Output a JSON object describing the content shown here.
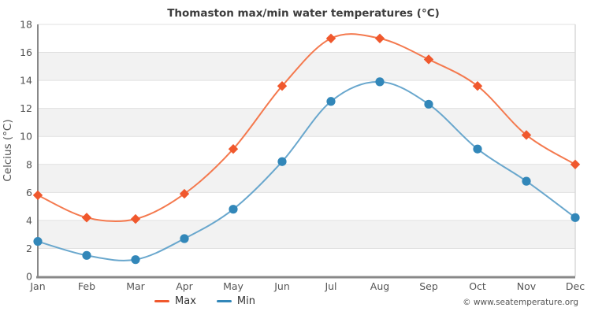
{
  "chart": {
    "copyright": "© www.seatemperature.org"
  },
  "chart_data": {
    "type": "line",
    "title": "Thomaston max/min water temperatures (°C)",
    "xlabel": "",
    "ylabel": "Celcius (°C)",
    "categories": [
      "Jan",
      "Feb",
      "Mar",
      "Apr",
      "May",
      "Jun",
      "Jul",
      "Aug",
      "Sep",
      "Oct",
      "Nov",
      "Dec"
    ],
    "series": [
      {
        "name": "Max",
        "marker": "diamond",
        "marker_color": "#f0582d",
        "line_color": "#f4794e",
        "values": [
          5.8,
          4.2,
          4.1,
          5.9,
          9.1,
          13.6,
          17.0,
          17.0,
          15.5,
          13.6,
          10.1,
          8.0
        ]
      },
      {
        "name": "Min",
        "marker": "circle",
        "marker_color": "#3287b9",
        "line_color": "#69a7cd",
        "values": [
          2.5,
          1.5,
          1.2,
          2.7,
          4.8,
          8.2,
          12.5,
          13.9,
          12.3,
          9.1,
          6.8,
          4.2
        ]
      }
    ],
    "ylim": [
      0,
      18
    ],
    "ytick_step": 2,
    "grid": "horizontal",
    "band_fill": "#f2f2f2",
    "gridline_color": "#e0e0e0",
    "axis_color": "#888888",
    "border_color": "#d9d9d9",
    "tick_label_color": "#555555",
    "title_color": "#3c3c3c",
    "legend_position": "bottom"
  }
}
